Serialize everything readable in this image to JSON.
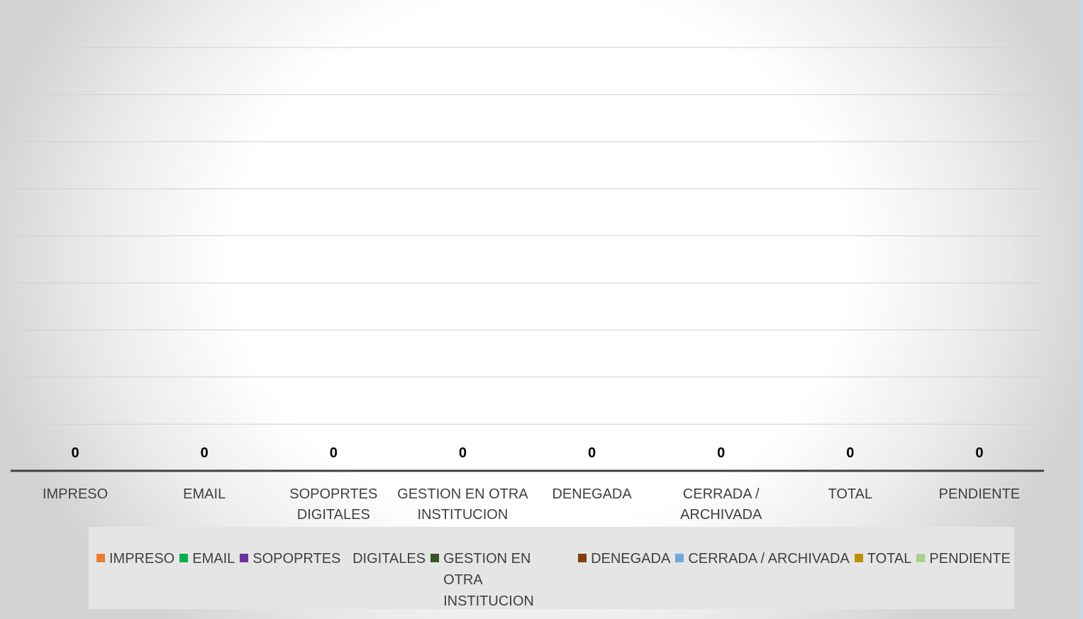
{
  "chart_data": {
    "type": "bar",
    "categories": [
      "IMPRESO",
      "EMAIL",
      "SOPOPRTES DIGITALES",
      "GESTION EN OTRA INSTITUCION",
      "DENEGADA",
      "CERRADA / ARCHIVADA",
      "TOTAL",
      "PENDIENTE"
    ],
    "category_label_lines": [
      [
        "IMPRESO"
      ],
      [
        "EMAIL"
      ],
      [
        "SOPOPRTES",
        "DIGITALES"
      ],
      [
        "GESTION EN OTRA",
        "INSTITUCION"
      ],
      [
        "DENEGADA"
      ],
      [
        "CERRADA /",
        "ARCHIVADA"
      ],
      [
        "TOTAL"
      ],
      [
        "PENDIENTE"
      ]
    ],
    "values": [
      0,
      0,
      0,
      0,
      0,
      0,
      0,
      0
    ],
    "data_labels": [
      "0",
      "0",
      "0",
      "0",
      "0",
      "0",
      "0",
      "0"
    ],
    "ylim": [
      0,
      8
    ],
    "grid": true,
    "legend_position": "bottom"
  },
  "legend": {
    "items": [
      {
        "label": "IMPRESO",
        "color": "#ed7d31"
      },
      {
        "label": "EMAIL",
        "color": "#00b050"
      },
      {
        "label": "SOPOPRTES   DIGITALES",
        "color": "#7030a0"
      },
      {
        "label": "GESTION EN OTRA INSTITUCION",
        "color": "#375623"
      },
      {
        "label": "DENEGADA",
        "color": "#843c0c"
      },
      {
        "label": "CERRADA / ARCHIVADA",
        "color": "#6fa8dc"
      },
      {
        "label": "TOTAL",
        "color": "#bf9000"
      },
      {
        "label": "PENDIENTE",
        "color": "#a9d18e"
      }
    ]
  },
  "colors": {
    "gridline": "#d0d0d0",
    "axis": "#404040",
    "text": "#404040",
    "data_label": "#000000"
  }
}
